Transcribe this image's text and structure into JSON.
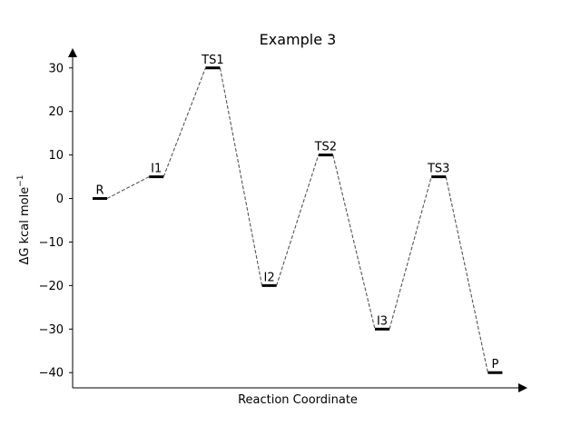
{
  "chart_data": {
    "type": "line",
    "title": "Example 3",
    "xlabel": "Reaction Coordinate",
    "ylabel": "ΔG kcal mole",
    "ylabel_superscript": "−1",
    "ylim": [
      -43.5,
      33.5
    ],
    "yticks": [
      30,
      20,
      10,
      0,
      -10,
      -20,
      -30,
      -40
    ],
    "ytick_labels": [
      "30",
      "20",
      "10",
      "0",
      "−10",
      "−20",
      "−30",
      "−40"
    ],
    "grid": false,
    "points": [
      {
        "label": "R",
        "x": 1,
        "y": 0
      },
      {
        "label": "I1",
        "x": 2,
        "y": 5
      },
      {
        "label": "TS1",
        "x": 3,
        "y": 30
      },
      {
        "label": "I2",
        "x": 4,
        "y": -20
      },
      {
        "label": "TS2",
        "x": 5,
        "y": 10
      },
      {
        "label": "I3",
        "x": 6,
        "y": -30
      },
      {
        "label": "TS3",
        "x": 7,
        "y": 5
      },
      {
        "label": "P",
        "x": 8,
        "y": -40
      }
    ],
    "level_color": "#000000",
    "connector_color": "#555555",
    "connector_style": "dashed"
  }
}
